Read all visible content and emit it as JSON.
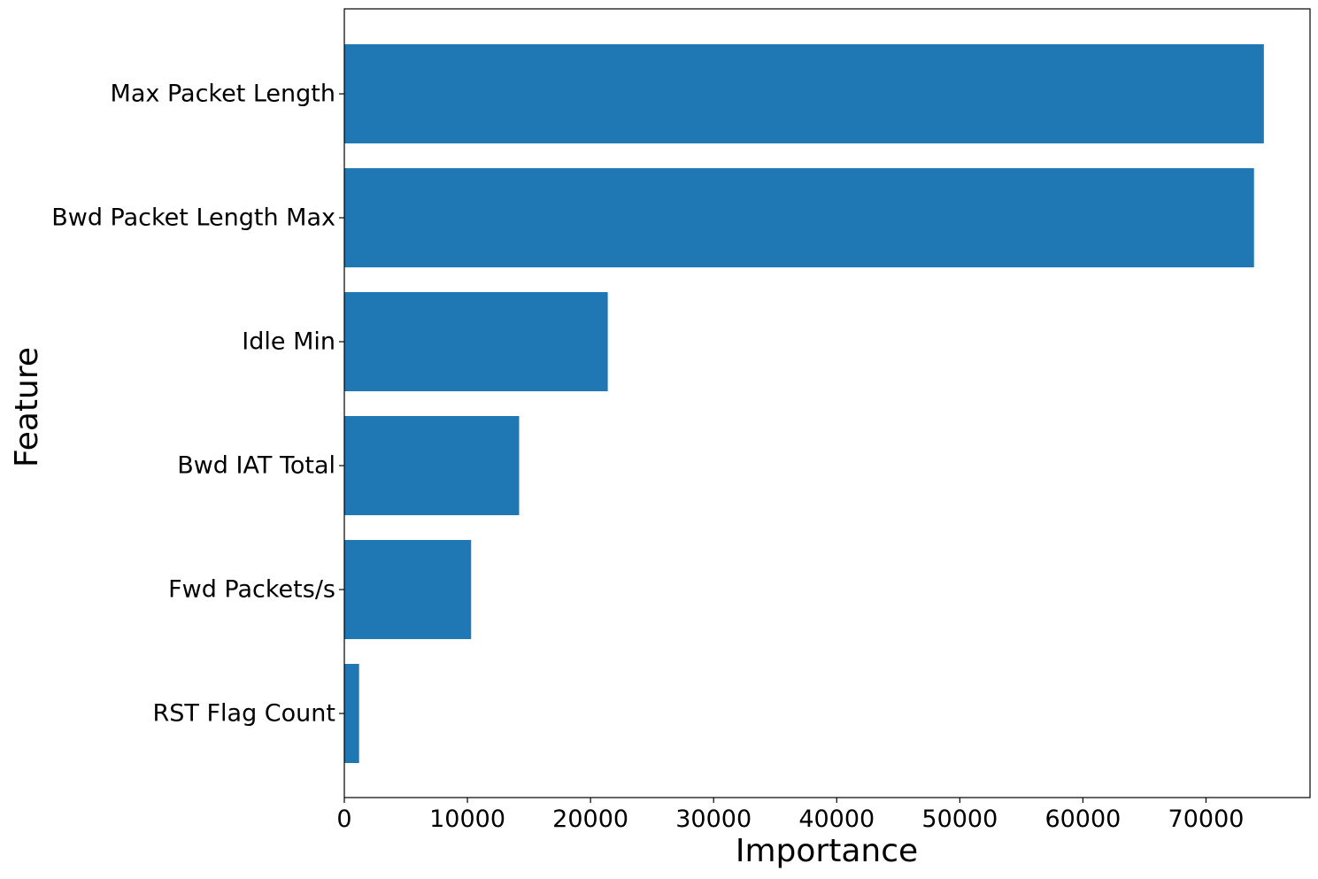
{
  "chart_data": {
    "type": "bar",
    "orientation": "horizontal",
    "title": "",
    "xlabel": "Importance",
    "ylabel": "Feature",
    "categories": [
      "Max Packet Length",
      "Bwd Packet Length Max",
      "Idle Min",
      "Bwd IAT Total",
      "Fwd Packets/s",
      "RST Flag Count"
    ],
    "values": [
      74700,
      73900,
      21400,
      14200,
      10300,
      1200
    ],
    "xlim": [
      0,
      78450
    ],
    "xticks": [
      0,
      10000,
      20000,
      30000,
      40000,
      50000,
      60000,
      70000
    ],
    "xtick_labels": [
      "0",
      "10000",
      "20000",
      "30000",
      "40000",
      "50000",
      "60000",
      "70000"
    ],
    "grid": false,
    "legend": "none",
    "colors": {
      "bar": "#1f77b4",
      "axis": "#000000",
      "background": "#ffffff"
    }
  }
}
